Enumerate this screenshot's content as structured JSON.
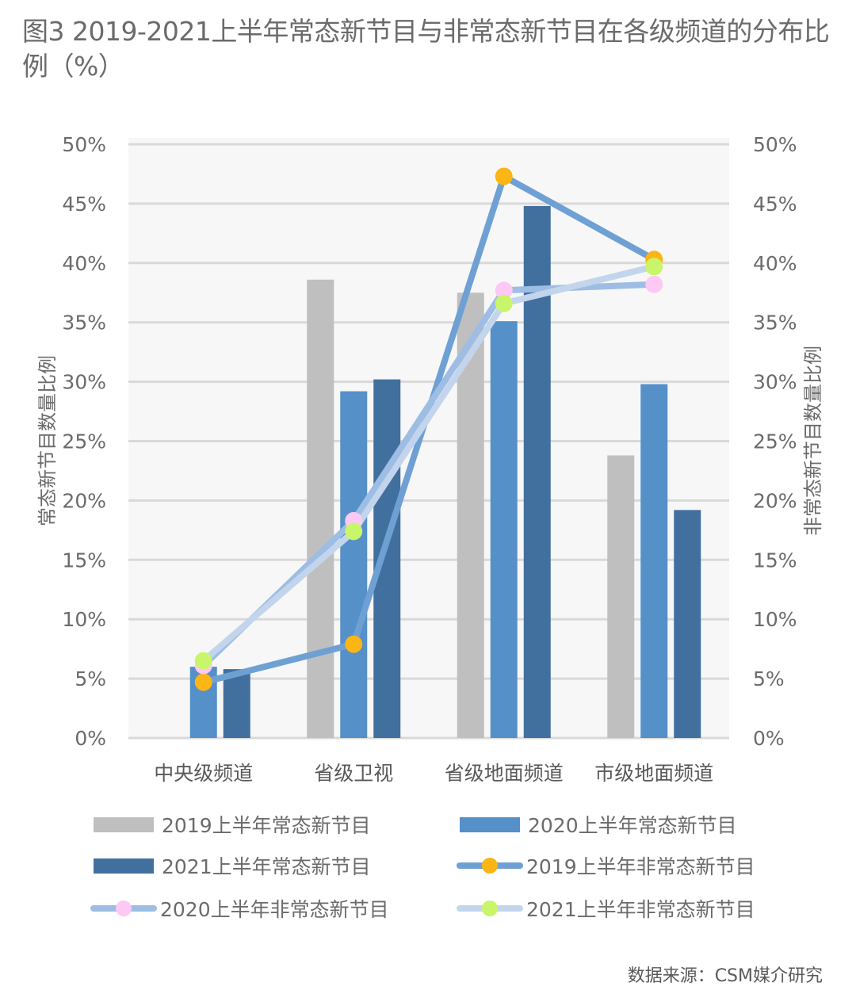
{
  "title": "图3  2019-2021上半年常态新节目与非常态新节目在各级频道的分布比例（%）",
  "source": "数据来源：CSM媒介研究",
  "colors": {
    "bar_2019": "#bfbfbf",
    "bar_2020": "#5590c8",
    "bar_2021": "#41709f",
    "line_2019": "#6fa0d4",
    "line_2020": "#9dbde4",
    "line_2021": "#c3d5ec",
    "marker_2019": "#fbb514",
    "marker_2020": "#fdc8f4",
    "marker_2021": "#c8f56a",
    "plot_bg": "#f7f7f7",
    "grid": "#d9d9d9"
  },
  "chart_data": {
    "type": "bar+line",
    "title": "图3  2019-2021上半年常态新节目与非常态新节目在各级频道的分布比例（%）",
    "categories": [
      "中央级频道",
      "省级卫视",
      "省级地面频道",
      "市级地面频道"
    ],
    "ylabel": "常态新节目数量比例",
    "y2label": "非常态新节目数量比例",
    "ylim": [
      0,
      50
    ],
    "y2lim": [
      0,
      50
    ],
    "yticks": [
      "0%",
      "5%",
      "10%",
      "15%",
      "20%",
      "25%",
      "30%",
      "35%",
      "40%",
      "45%",
      "50%"
    ],
    "grid": true,
    "legend_position": "bottom",
    "series": [
      {
        "name": "2019上半年常态新节目",
        "type": "bar",
        "axis": "left",
        "values": [
          0,
          38.6,
          37.5,
          23.8
        ]
      },
      {
        "name": "2020上半年常态新节目",
        "type": "bar",
        "axis": "left",
        "values": [
          6.0,
          29.2,
          35.1,
          29.8
        ]
      },
      {
        "name": "2021上半年常态新节目",
        "type": "bar",
        "axis": "left",
        "values": [
          5.8,
          30.2,
          44.8,
          19.2
        ]
      },
      {
        "name": "2019上半年非常态新节目",
        "type": "line",
        "axis": "right",
        "values": [
          4.7,
          7.9,
          47.3,
          40.3
        ]
      },
      {
        "name": "2020上半年非常态新节目",
        "type": "line",
        "axis": "right",
        "values": [
          6.1,
          18.3,
          37.7,
          38.2
        ]
      },
      {
        "name": "2021上半年非常态新节目",
        "type": "line",
        "axis": "right",
        "values": [
          6.5,
          17.4,
          36.6,
          39.7
        ]
      }
    ]
  },
  "legend": [
    {
      "label": "2019上半年常态新节目",
      "kind": "bar",
      "key": "2019"
    },
    {
      "label": "2020上半年常态新节目",
      "kind": "bar",
      "key": "2020"
    },
    {
      "label": "2021上半年常态新节目",
      "kind": "bar",
      "key": "2021"
    },
    {
      "label": "2019上半年非常态新节目",
      "kind": "line",
      "key": "2019"
    },
    {
      "label": "2020上半年非常态新节目",
      "kind": "line",
      "key": "2020"
    },
    {
      "label": "2021上半年非常态新节目",
      "kind": "line",
      "key": "2021"
    }
  ]
}
